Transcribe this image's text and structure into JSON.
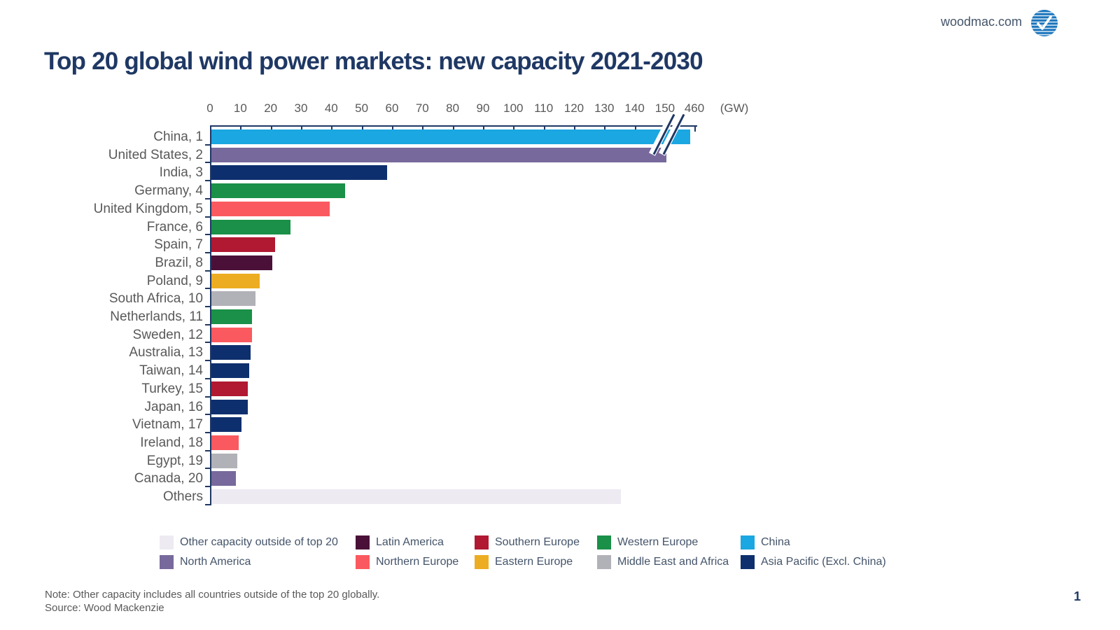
{
  "header": {
    "site": "woodmac.com"
  },
  "title": "Top 20 global wind power markets: new capacity 2021-2030",
  "chart_data": {
    "type": "bar",
    "orientation": "horizontal",
    "title": "Top 20 global wind power markets: new capacity 2021-2030",
    "unit_label": "(GW)",
    "axis_ticks": [
      0,
      10,
      20,
      30,
      40,
      50,
      60,
      70,
      80,
      90,
      100,
      110,
      120,
      130,
      140,
      150
    ],
    "broken_axis_tick": 460,
    "axis_break_between": [
      150,
      460
    ],
    "grid": false,
    "rows": [
      {
        "label": "China, 1",
        "country": "China",
        "rank": 1,
        "value": 460,
        "region": "China",
        "axis_break": true
      },
      {
        "label": "United States, 2",
        "country": "United States",
        "rank": 2,
        "value": 150,
        "region": "North America"
      },
      {
        "label": "India, 3",
        "country": "India",
        "rank": 3,
        "value": 58,
        "region": "Asia Pacific (Excl. China)"
      },
      {
        "label": "Germany, 4",
        "country": "Germany",
        "rank": 4,
        "value": 44,
        "region": "Western Europe"
      },
      {
        "label": "United Kingdom, 5",
        "country": "United Kingdom",
        "rank": 5,
        "value": 39,
        "region": "Northern Europe"
      },
      {
        "label": "France, 6",
        "country": "France",
        "rank": 6,
        "value": 26,
        "region": "Western Europe"
      },
      {
        "label": "Spain, 7",
        "country": "Spain",
        "rank": 7,
        "value": 21,
        "region": "Southern Europe"
      },
      {
        "label": "Brazil, 8",
        "country": "Brazil",
        "rank": 8,
        "value": 20,
        "region": "Latin America"
      },
      {
        "label": "Poland, 9",
        "country": "Poland",
        "rank": 9,
        "value": 16,
        "region": "Eastern Europe"
      },
      {
        "label": "South Africa, 10",
        "country": "South Africa",
        "rank": 10,
        "value": 14.5,
        "region": "Middle East and Africa"
      },
      {
        "label": "Netherlands, 11",
        "country": "Netherlands",
        "rank": 11,
        "value": 13.5,
        "region": "Western Europe"
      },
      {
        "label": "Sweden, 12",
        "country": "Sweden",
        "rank": 12,
        "value": 13.5,
        "region": "Northern Europe"
      },
      {
        "label": "Australia, 13",
        "country": "Australia",
        "rank": 13,
        "value": 13,
        "region": "Asia Pacific (Excl. China)"
      },
      {
        "label": "Taiwan, 14",
        "country": "Taiwan",
        "rank": 14,
        "value": 12.5,
        "region": "Asia Pacific (Excl. China)"
      },
      {
        "label": "Turkey, 15",
        "country": "Turkey",
        "rank": 15,
        "value": 12,
        "region": "Southern Europe"
      },
      {
        "label": "Japan, 16",
        "country": "Japan",
        "rank": 16,
        "value": 12,
        "region": "Asia Pacific (Excl. China)"
      },
      {
        "label": "Vietnam, 17",
        "country": "Vietnam",
        "rank": 17,
        "value": 10,
        "region": "Asia Pacific (Excl. China)"
      },
      {
        "label": "Ireland, 18",
        "country": "Ireland",
        "rank": 18,
        "value": 9,
        "region": "Northern Europe"
      },
      {
        "label": "Egypt, 19",
        "country": "Egypt",
        "rank": 19,
        "value": 8.5,
        "region": "Middle East and Africa"
      },
      {
        "label": "Canada, 20",
        "country": "Canada",
        "rank": 20,
        "value": 8,
        "region": "North America"
      },
      {
        "label": "Others",
        "country": "Others",
        "rank": null,
        "value": 135,
        "region": "Other capacity outside of top 20"
      }
    ]
  },
  "region_colors": {
    "Other capacity outside of top 20": "#EDEAF2",
    "North America": "#77699B",
    "Latin America": "#4A1038",
    "Northern Europe": "#FA5A5F",
    "Southern Europe": "#B01931",
    "Eastern Europe": "#EDAD22",
    "Western Europe": "#1A9048",
    "Middle East and Africa": "#B1B1B8",
    "China": "#1BA7E1",
    "Asia Pacific (Excl. China)": "#0E2F6E"
  },
  "legend": {
    "items": [
      {
        "label": "Other capacity outside of top 20",
        "region": "Other capacity outside of top 20"
      },
      {
        "label": "North America",
        "region": "North America"
      },
      {
        "label": "Latin America",
        "region": "Latin America"
      },
      {
        "label": "Northern Europe",
        "region": "Northern Europe"
      },
      {
        "label": "Southern Europe",
        "region": "Southern Europe"
      },
      {
        "label": "Eastern Europe",
        "region": "Eastern Europe"
      },
      {
        "label": "Western Europe",
        "region": "Western Europe"
      },
      {
        "label": "Middle East and Africa",
        "region": "Middle East and Africa"
      },
      {
        "label": "China",
        "region": "China"
      },
      {
        "label": "Asia Pacific (Excl. China)",
        "region": "Asia Pacific (Excl. China)"
      }
    ]
  },
  "footer": {
    "note": "Note: Other capacity includes all countries outside of the top 20 globally.",
    "source": "Source: Wood Mackenzie",
    "page_number": "1"
  },
  "brand_colors": {
    "title_navy": "#1F3864",
    "axis_navy": "#1F3864",
    "text_gray": "#595959",
    "logo_blue": "#1B75BC"
  }
}
